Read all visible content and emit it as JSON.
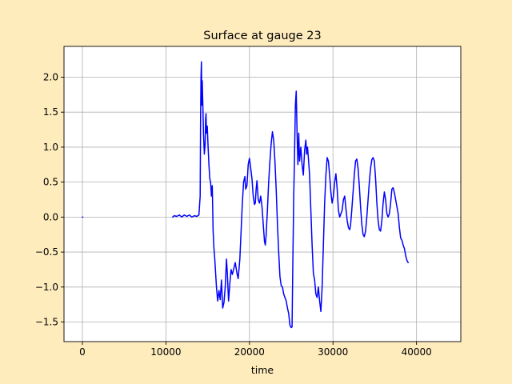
{
  "chart_data": {
    "type": "line",
    "title": "Surface at gauge 23",
    "xlabel": "time",
    "ylabel": "",
    "xlim": [
      -2200,
      45300
    ],
    "ylim": [
      -1.78,
      2.44
    ],
    "xticks": [
      0,
      10000,
      20000,
      30000,
      40000
    ],
    "yticks": [
      -1.5,
      -1.0,
      -0.5,
      0.0,
      0.5,
      1.0,
      1.5,
      2.0
    ],
    "xtick_labels": [
      "0",
      "10000",
      "20000",
      "30000",
      "40000"
    ],
    "ytick_labels": [
      "−1.5",
      "−1.0",
      "−0.5",
      "0.0",
      "0.5",
      "1.0",
      "1.5",
      "2.0"
    ],
    "grid": true,
    "line_color": "#0000ff",
    "series": [
      {
        "points": [
          [
            0,
            0.0
          ],
          [
            60,
            0.0
          ]
        ]
      },
      {
        "points": [
          [
            10800,
            0.0
          ],
          [
            11000,
            0.02
          ],
          [
            11300,
            0.01
          ],
          [
            11600,
            0.03
          ],
          [
            11900,
            0.0
          ],
          [
            12200,
            0.03
          ],
          [
            12500,
            0.01
          ],
          [
            12800,
            0.03
          ],
          [
            13100,
            0.0
          ],
          [
            13400,
            0.02
          ],
          [
            13700,
            0.01
          ],
          [
            13950,
            0.03
          ],
          [
            14100,
            0.3
          ],
          [
            14150,
            1.4
          ],
          [
            14200,
            2.0
          ],
          [
            14250,
            2.22
          ],
          [
            14300,
            1.6
          ],
          [
            14350,
            1.95
          ],
          [
            14400,
            1.7
          ],
          [
            14500,
            1.2
          ],
          [
            14600,
            0.9
          ],
          [
            14700,
            1.05
          ],
          [
            14750,
            1.4
          ],
          [
            14800,
            1.48
          ],
          [
            14850,
            1.2
          ],
          [
            14950,
            1.3
          ],
          [
            15050,
            1.0
          ],
          [
            15150,
            0.75
          ],
          [
            15250,
            0.55
          ],
          [
            15350,
            0.5
          ],
          [
            15450,
            0.3
          ],
          [
            15550,
            0.45
          ],
          [
            15650,
            -0.2
          ],
          [
            15750,
            -0.45
          ],
          [
            15850,
            -0.6
          ],
          [
            15950,
            -0.8
          ],
          [
            16050,
            -1.0
          ],
          [
            16200,
            -1.2
          ],
          [
            16350,
            -1.05
          ],
          [
            16500,
            -1.18
          ],
          [
            16650,
            -0.9
          ],
          [
            16800,
            -1.3
          ],
          [
            16950,
            -1.22
          ],
          [
            17100,
            -1.0
          ],
          [
            17250,
            -0.6
          ],
          [
            17350,
            -0.8
          ],
          [
            17500,
            -1.2
          ],
          [
            17650,
            -0.95
          ],
          [
            17800,
            -0.75
          ],
          [
            17950,
            -0.82
          ],
          [
            18100,
            -0.75
          ],
          [
            18300,
            -0.65
          ],
          [
            18500,
            -0.8
          ],
          [
            18650,
            -0.88
          ],
          [
            18850,
            -0.6
          ],
          [
            19000,
            -0.2
          ],
          [
            19150,
            0.2
          ],
          [
            19300,
            0.5
          ],
          [
            19450,
            0.58
          ],
          [
            19550,
            0.4
          ],
          [
            19700,
            0.45
          ],
          [
            19850,
            0.75
          ],
          [
            20000,
            0.84
          ],
          [
            20150,
            0.7
          ],
          [
            20300,
            0.55
          ],
          [
            20450,
            0.3
          ],
          [
            20600,
            0.18
          ],
          [
            20700,
            0.2
          ],
          [
            20800,
            0.4
          ],
          [
            20900,
            0.52
          ],
          [
            21050,
            0.25
          ],
          [
            21200,
            0.2
          ],
          [
            21350,
            0.3
          ],
          [
            21500,
            0.15
          ],
          [
            21650,
            -0.1
          ],
          [
            21800,
            -0.35
          ],
          [
            21900,
            -0.4
          ],
          [
            22000,
            -0.25
          ],
          [
            22150,
            0.1
          ],
          [
            22300,
            0.5
          ],
          [
            22450,
            0.8
          ],
          [
            22600,
            1.05
          ],
          [
            22750,
            1.22
          ],
          [
            22900,
            1.1
          ],
          [
            23050,
            0.8
          ],
          [
            23200,
            0.4
          ],
          [
            23350,
            -0.1
          ],
          [
            23500,
            -0.5
          ],
          [
            23650,
            -0.85
          ],
          [
            23800,
            -0.98
          ],
          [
            23950,
            -1.0
          ],
          [
            24100,
            -1.1
          ],
          [
            24250,
            -1.15
          ],
          [
            24400,
            -1.2
          ],
          [
            24550,
            -1.3
          ],
          [
            24700,
            -1.38
          ],
          [
            24850,
            -1.55
          ],
          [
            25000,
            -1.58
          ],
          [
            25100,
            -1.57
          ],
          [
            25200,
            -0.6
          ],
          [
            25300,
            0.3
          ],
          [
            25400,
            0.9
          ],
          [
            25500,
            1.6
          ],
          [
            25600,
            1.8
          ],
          [
            25700,
            1.2
          ],
          [
            25800,
            0.75
          ],
          [
            25900,
            1.2
          ],
          [
            26000,
            0.8
          ],
          [
            26150,
            1.0
          ],
          [
            26300,
            0.75
          ],
          [
            26450,
            0.6
          ],
          [
            26600,
            0.95
          ],
          [
            26750,
            1.1
          ],
          [
            26850,
            0.9
          ],
          [
            26950,
            1.0
          ],
          [
            27050,
            0.85
          ],
          [
            27200,
            0.6
          ],
          [
            27350,
            0.1
          ],
          [
            27500,
            -0.4
          ],
          [
            27650,
            -0.8
          ],
          [
            27800,
            -0.9
          ],
          [
            27950,
            -1.1
          ],
          [
            28100,
            -1.15
          ],
          [
            28250,
            -1.0
          ],
          [
            28400,
            -1.2
          ],
          [
            28550,
            -1.35
          ],
          [
            28700,
            -1.0
          ],
          [
            28850,
            -0.4
          ],
          [
            29000,
            0.2
          ],
          [
            29150,
            0.6
          ],
          [
            29300,
            0.85
          ],
          [
            29450,
            0.8
          ],
          [
            29600,
            0.6
          ],
          [
            29750,
            0.35
          ],
          [
            29900,
            0.2
          ],
          [
            30050,
            0.3
          ],
          [
            30200,
            0.5
          ],
          [
            30350,
            0.62
          ],
          [
            30500,
            0.4
          ],
          [
            30650,
            0.1
          ],
          [
            30800,
            0.0
          ],
          [
            30950,
            0.05
          ],
          [
            31100,
            0.1
          ],
          [
            31250,
            0.25
          ],
          [
            31400,
            0.3
          ],
          [
            31550,
            0.12
          ],
          [
            31700,
            -0.05
          ],
          [
            31850,
            -0.15
          ],
          [
            32000,
            -0.18
          ],
          [
            32100,
            -0.12
          ],
          [
            32250,
            0.1
          ],
          [
            32400,
            0.35
          ],
          [
            32550,
            0.6
          ],
          [
            32700,
            0.8
          ],
          [
            32850,
            0.83
          ],
          [
            33000,
            0.7
          ],
          [
            33150,
            0.45
          ],
          [
            33300,
            0.15
          ],
          [
            33450,
            -0.1
          ],
          [
            33600,
            -0.25
          ],
          [
            33750,
            -0.28
          ],
          [
            33900,
            -0.2
          ],
          [
            34050,
            0.0
          ],
          [
            34200,
            0.25
          ],
          [
            34350,
            0.5
          ],
          [
            34500,
            0.7
          ],
          [
            34650,
            0.82
          ],
          [
            34800,
            0.85
          ],
          [
            34950,
            0.8
          ],
          [
            35100,
            0.55
          ],
          [
            35250,
            0.2
          ],
          [
            35400,
            -0.05
          ],
          [
            35550,
            -0.18
          ],
          [
            35700,
            -0.2
          ],
          [
            35850,
            -0.05
          ],
          [
            36000,
            0.2
          ],
          [
            36150,
            0.36
          ],
          [
            36300,
            0.25
          ],
          [
            36450,
            0.05
          ],
          [
            36600,
            0.0
          ],
          [
            36750,
            0.05
          ],
          [
            36900,
            0.2
          ],
          [
            37050,
            0.4
          ],
          [
            37200,
            0.42
          ],
          [
            37350,
            0.35
          ],
          [
            37500,
            0.25
          ],
          [
            37650,
            0.15
          ],
          [
            37800,
            0.05
          ],
          [
            37950,
            -0.15
          ],
          [
            38100,
            -0.3
          ],
          [
            38250,
            -0.33
          ],
          [
            38400,
            -0.4
          ],
          [
            38550,
            -0.45
          ],
          [
            38700,
            -0.55
          ],
          [
            38850,
            -0.62
          ],
          [
            39000,
            -0.65
          ]
        ]
      }
    ]
  }
}
